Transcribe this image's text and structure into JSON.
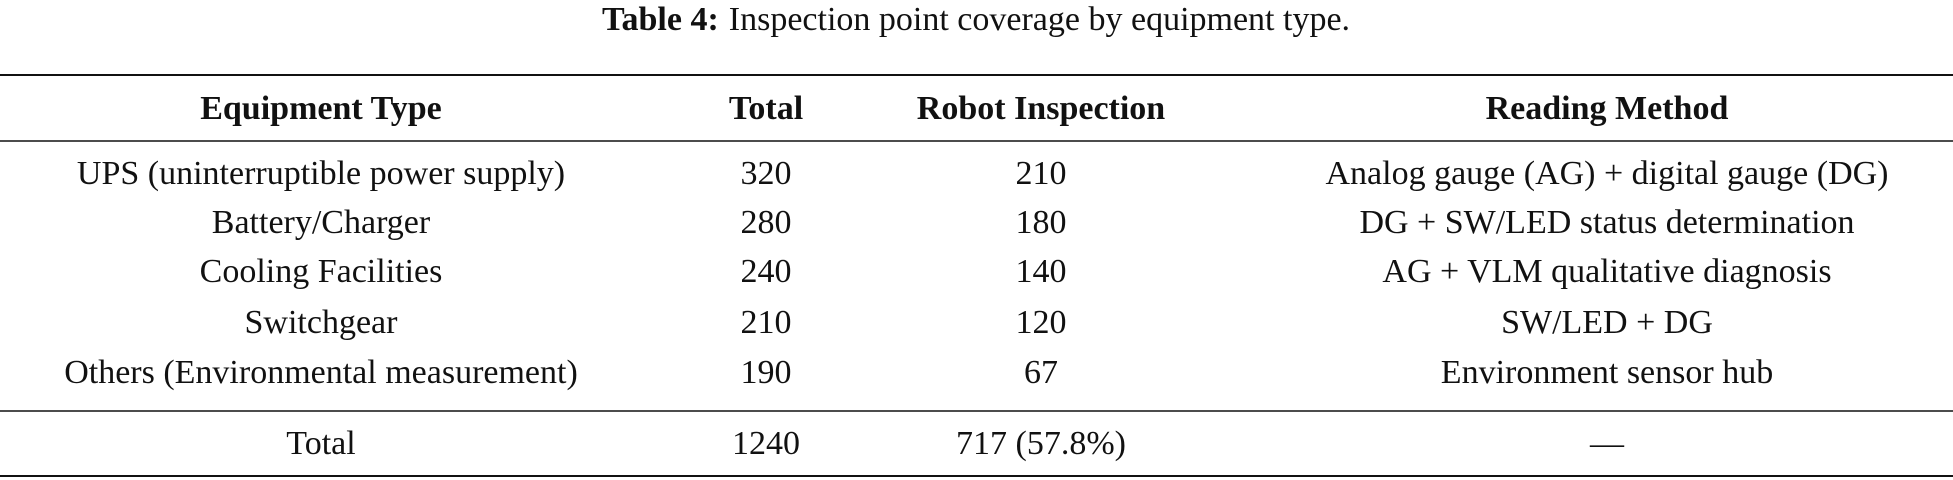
{
  "caption": {
    "label": "Table 4:",
    "text": "Inspection point coverage by equipment type."
  },
  "table": {
    "header": [
      "Equipment Type",
      "Total",
      "Robot Inspection",
      "Reading Method"
    ],
    "rows": [
      [
        "UPS (uninterruptible power supply)",
        320,
        210,
        "Analog gauge (AG) + digital gauge (DG)"
      ],
      [
        "Battery/Charger",
        280,
        180,
        "DG + SW/LED status determination"
      ],
      [
        "Cooling Facilities",
        240,
        140,
        "AG + VLM qualitative diagnosis"
      ],
      [
        "Switchgear",
        210,
        120,
        "SW/LED + DG"
      ],
      [
        "Others (Environmental measurement)",
        190,
        67,
        "Environment sensor hub"
      ]
    ],
    "footer": [
      "Total",
      1240,
      "717 (57.8%)",
      "—"
    ]
  }
}
